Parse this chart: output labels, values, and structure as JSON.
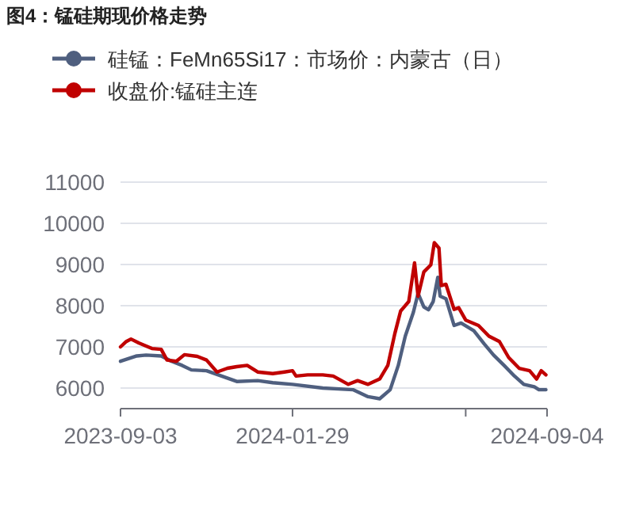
{
  "chart_data": {
    "type": "line",
    "title": "图4：锰硅期现价格走势",
    "legend": "top left",
    "grid": "y",
    "xlim": [
      "2023-09-03",
      "2024-09-04"
    ],
    "xticks": [
      "2023-09-03",
      "2024-01-29",
      {
        "value": "2024-06-26",
        "label": null
      },
      "2024-09-04"
    ],
    "ylim": [
      5500,
      11000
    ],
    "yticks": [
      6000,
      7000,
      8000,
      9000,
      10000,
      11000
    ],
    "series": [
      {
        "name": "硅锰：FeMn65Si17：市场价：内蒙古（日）",
        "color": "#4f5f7f",
        "x": [
          "2023-09-03",
          "2023-09-17",
          "2023-09-25",
          "2023-10-08",
          "2023-10-17",
          "2023-10-26",
          "2023-11-03",
          "2023-11-16",
          "2023-11-29",
          "2023-12-12",
          "2023-12-30",
          "2024-01-12",
          "2024-01-29",
          "2024-02-24",
          "2024-03-21",
          "2024-04-03",
          "2024-04-13",
          "2024-04-22",
          "2024-04-29",
          "2024-05-05",
          "2024-05-12",
          "2024-05-16",
          "2024-05-21",
          "2024-05-25",
          "2024-05-29",
          "2024-06-02",
          "2024-06-04",
          "2024-06-09",
          "2024-06-16",
          "2024-06-22",
          "2024-07-03",
          "2024-07-12",
          "2024-07-20",
          "2024-07-29",
          "2024-08-07",
          "2024-08-15",
          "2024-08-24",
          "2024-08-28",
          "2024-09-03"
        ],
        "values": [
          6650,
          6780,
          6800,
          6780,
          6650,
          6550,
          6440,
          6420,
          6290,
          6160,
          6180,
          6130,
          6090,
          6000,
          5960,
          5790,
          5740,
          5960,
          6550,
          7260,
          7840,
          8300,
          7970,
          7900,
          8100,
          8690,
          8230,
          8170,
          7520,
          7580,
          7390,
          7070,
          6800,
          6550,
          6290,
          6090,
          6030,
          5960,
          5960
        ]
      },
      {
        "name": "收盘价:锰硅主连",
        "color": "#c00000",
        "x": [
          "2023-09-03",
          "2023-09-08",
          "2023-09-12",
          "2023-09-19",
          "2023-09-30",
          "2023-10-08",
          "2023-10-13",
          "2023-10-21",
          "2023-10-28",
          "2023-11-08",
          "2023-11-16",
          "2023-11-25",
          "2023-12-04",
          "2023-12-12",
          "2023-12-21",
          "2023-12-30",
          "2024-01-12",
          "2024-01-22",
          "2024-01-29",
          "2024-02-01",
          "2024-02-11",
          "2024-02-24",
          "2024-03-04",
          "2024-03-17",
          "2024-03-25",
          "2024-04-03",
          "2024-04-13",
          "2024-04-20",
          "2024-04-26",
          "2024-05-01",
          "2024-05-08",
          "2024-05-13",
          "2024-05-16",
          "2024-05-21",
          "2024-05-27",
          "2024-05-30",
          "2024-06-03",
          "2024-06-05",
          "2024-06-09",
          "2024-06-16",
          "2024-06-20",
          "2024-06-26",
          "2024-07-07",
          "2024-07-16",
          "2024-07-25",
          "2024-08-02",
          "2024-08-11",
          "2024-08-20",
          "2024-08-26",
          "2024-08-30",
          "2024-09-03"
        ],
        "values": [
          7000,
          7130,
          7190,
          7090,
          6960,
          6940,
          6680,
          6650,
          6810,
          6770,
          6680,
          6390,
          6480,
          6520,
          6550,
          6390,
          6350,
          6390,
          6420,
          6290,
          6320,
          6320,
          6290,
          6090,
          6180,
          6090,
          6220,
          6550,
          7320,
          7870,
          8100,
          9040,
          8230,
          8820,
          8990,
          9530,
          9400,
          8490,
          8520,
          7910,
          7950,
          7650,
          7520,
          7260,
          7130,
          6740,
          6480,
          6420,
          6220,
          6420,
          6320
        ]
      }
    ]
  }
}
